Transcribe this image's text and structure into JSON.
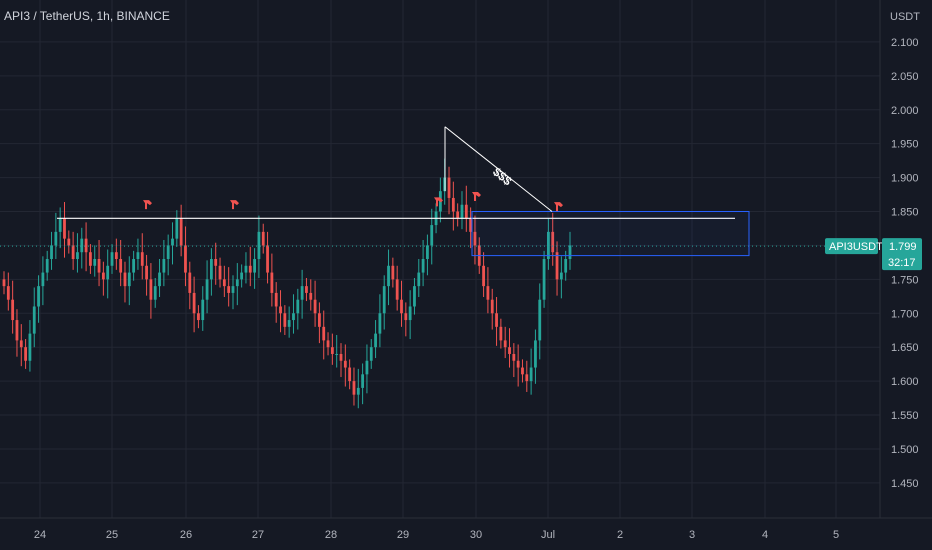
{
  "header": {
    "symbol_title": "API3 / TetherUS, 1h, BINANCE"
  },
  "price_axis": {
    "currency_label": "USDT",
    "ticks": [
      "2.100",
      "2.050",
      "2.000",
      "1.950",
      "1.900",
      "1.850",
      "1.800",
      "1.750",
      "1.700",
      "1.650",
      "1.600",
      "1.550",
      "1.500",
      "1.450"
    ]
  },
  "time_axis": {
    "ticks": [
      "24",
      "25",
      "26",
      "27",
      "28",
      "29",
      "30",
      "Jul",
      "2",
      "3",
      "4",
      "5"
    ]
  },
  "last_price": {
    "symbol_tag": "API3USDT",
    "price": "1.799",
    "countdown": "32:17"
  },
  "annotations": {
    "target_label": "$$$"
  },
  "colors": {
    "background": "#151924",
    "up_candle": "#26a69a",
    "down_candle": "#ef5350",
    "grid": "#232733",
    "resistance_line": "#ffffff",
    "zone_border": "#2962ff",
    "tag_bg": "#26a69a",
    "marker": "#ef5350"
  },
  "chart_data": {
    "type": "candlestick",
    "title": "API3 / TetherUS, 1h, BINANCE",
    "ylabel": "USDT",
    "y_range": [
      1.41,
      2.15
    ],
    "x_tick_labels": [
      "24",
      "25",
      "26",
      "27",
      "28",
      "29",
      "30",
      "Jul",
      "2",
      "3",
      "4",
      "5"
    ],
    "last_price": 1.799,
    "resistance_level": 1.84,
    "supply_zone": {
      "low": 1.785,
      "high": 1.85
    },
    "trendline": {
      "from_price": 1.975,
      "to_price": 1.85
    },
    "series": [
      {
        "name": "API3USDT",
        "values": [
          1.74,
          1.72,
          1.69,
          1.66,
          1.65,
          1.63,
          1.67,
          1.71,
          1.74,
          1.76,
          1.78,
          1.8,
          1.82,
          1.84,
          1.81,
          1.8,
          1.78,
          1.79,
          1.81,
          1.79,
          1.77,
          1.78,
          1.76,
          1.75,
          1.77,
          1.79,
          1.78,
          1.76,
          1.74,
          1.76,
          1.78,
          1.79,
          1.77,
          1.75,
          1.72,
          1.74,
          1.76,
          1.78,
          1.8,
          1.81,
          1.84,
          1.8,
          1.76,
          1.73,
          1.7,
          1.69,
          1.72,
          1.75,
          1.78,
          1.77,
          1.75,
          1.74,
          1.73,
          1.74,
          1.75,
          1.76,
          1.77,
          1.76,
          1.78,
          1.82,
          1.8,
          1.76,
          1.73,
          1.71,
          1.7,
          1.68,
          1.69,
          1.7,
          1.72,
          1.74,
          1.73,
          1.72,
          1.7,
          1.68,
          1.66,
          1.65,
          1.64,
          1.64,
          1.63,
          1.62,
          1.6,
          1.58,
          1.59,
          1.61,
          1.63,
          1.65,
          1.67,
          1.7,
          1.74,
          1.77,
          1.75,
          1.72,
          1.7,
          1.69,
          1.71,
          1.74,
          1.76,
          1.78,
          1.8,
          1.83,
          1.85,
          1.88,
          1.9,
          1.87,
          1.85,
          1.84,
          1.86,
          1.84,
          1.82,
          1.8,
          1.77,
          1.74,
          1.72,
          1.7,
          1.68,
          1.66,
          1.65,
          1.64,
          1.63,
          1.62,
          1.61,
          1.6,
          1.62,
          1.66,
          1.72,
          1.78,
          1.82,
          1.79,
          1.75,
          1.76,
          1.78,
          1.8
        ]
      }
    ]
  }
}
